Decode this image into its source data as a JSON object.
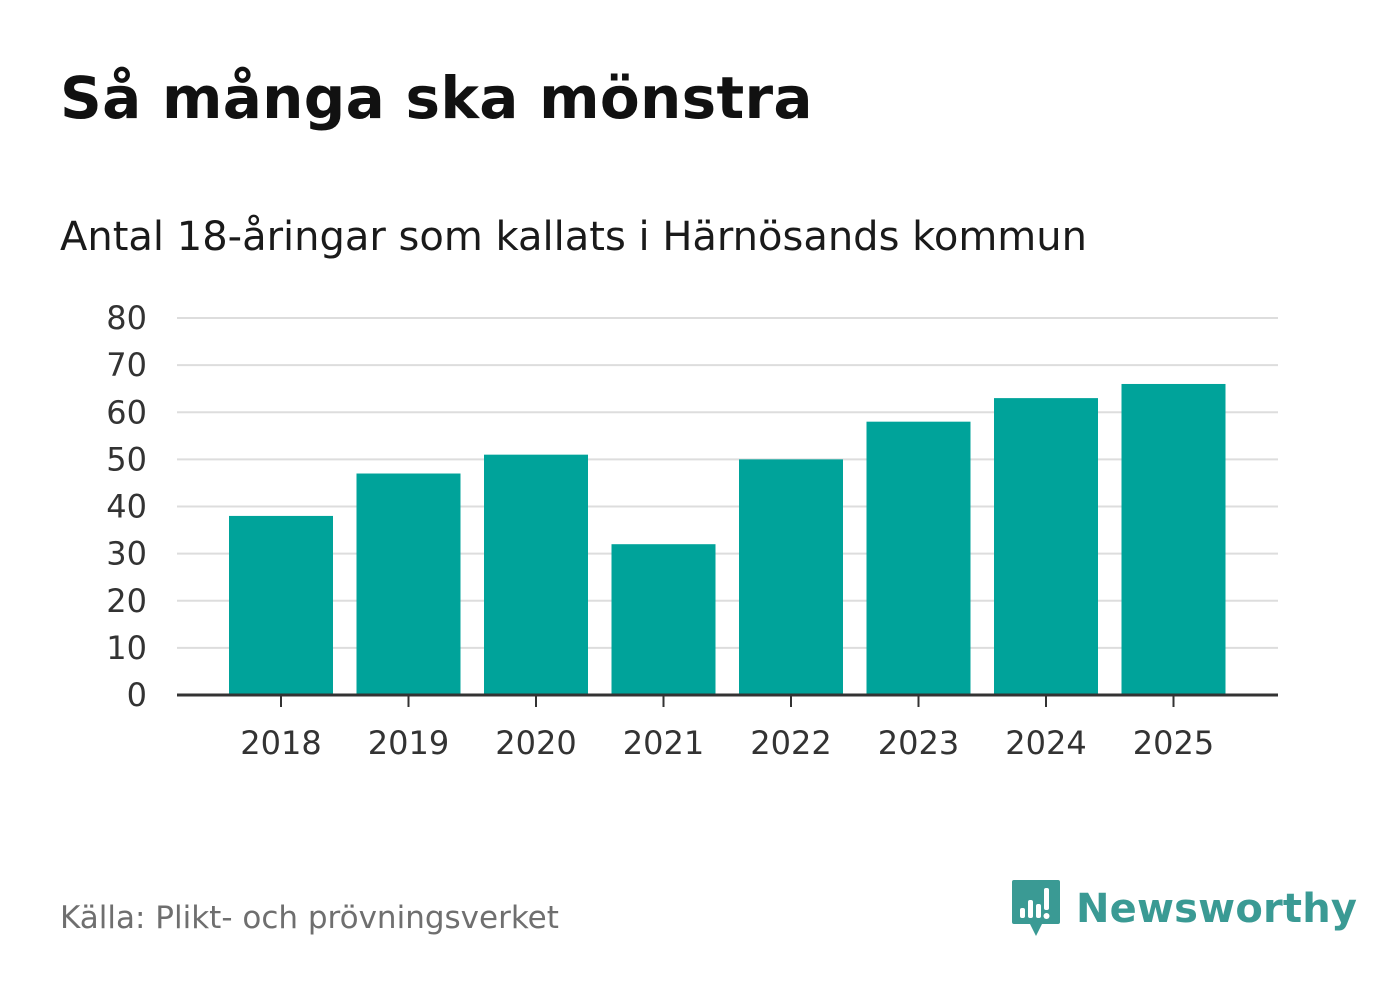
{
  "header": {
    "title": "Så många ska mönstra",
    "subtitle": "Antal 18-åringar som kallats i Härnösands kommun"
  },
  "footer": {
    "source": "Källa: Plikt- och prövningsverket",
    "brand": "Newsworthy"
  },
  "colors": {
    "bar": "#00a39a",
    "grid": "#dddddd",
    "axis": "#333333",
    "brand": "#3a9a94"
  },
  "chart_data": {
    "type": "bar",
    "title": "Så många ska mönstra",
    "subtitle": "Antal 18-åringar som kallats i Härnösands kommun",
    "xlabel": "",
    "ylabel": "",
    "categories": [
      "2018",
      "2019",
      "2020",
      "2021",
      "2022",
      "2023",
      "2024",
      "2025"
    ],
    "values": [
      38,
      47,
      51,
      32,
      50,
      58,
      63,
      66
    ],
    "ylim": [
      0,
      80
    ],
    "yticks": [
      0,
      10,
      20,
      30,
      40,
      50,
      60,
      70,
      80
    ],
    "grid": true,
    "legend": "none"
  }
}
